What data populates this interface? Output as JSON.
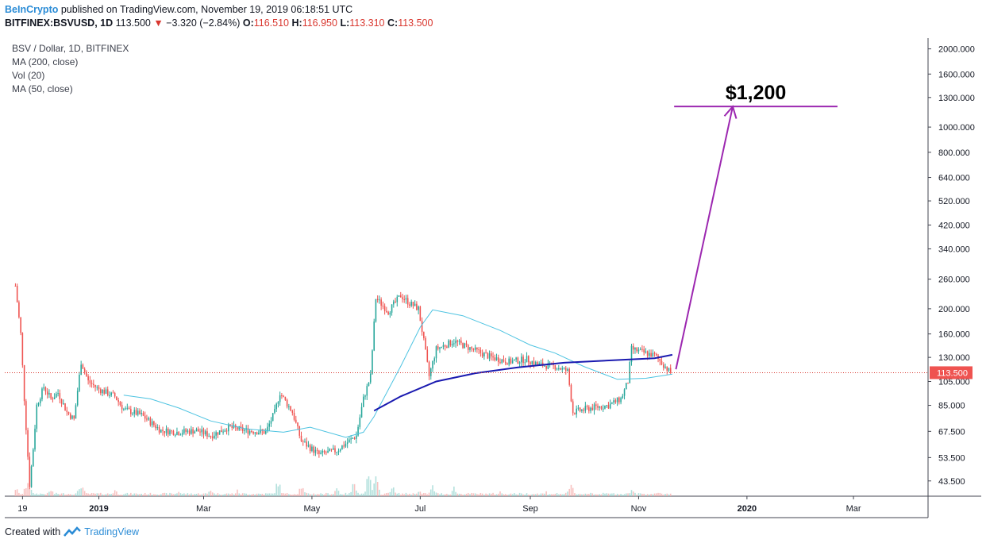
{
  "header": {
    "publisher": "BeInCrypto",
    "published_text": "published on TradingView.com, November 19, 2019 06:18:51 UTC",
    "symbol": "BITFINEX:BSVUSD, 1D",
    "last": "113.500",
    "change": "−3.320 (−2.84%)",
    "open_label": "O:",
    "open": "116.510",
    "high_label": "H:",
    "high": "116.950",
    "low_label": "L:",
    "low": "113.310",
    "close_label": "C:",
    "close": "113.500"
  },
  "legend": {
    "title": "BSV / Dollar, 1D, BITFINEX",
    "ma200": "MA (200, close)",
    "vol": "Vol (20)",
    "ma50": "MA (50, close)"
  },
  "chart_data": {
    "type": "candlestick",
    "y_scale": "log",
    "ylim": [
      38,
      2200
    ],
    "y_ticks": [
      "2000.000",
      "1600.000",
      "1300.000",
      "1000.000",
      "800.000",
      "640.000",
      "520.000",
      "420.000",
      "340.000",
      "260.000",
      "200.000",
      "160.000",
      "130.000",
      "105.000",
      "85.000",
      "67.500",
      "53.500",
      "43.500"
    ],
    "y_tick_values": [
      2000,
      1600,
      1300,
      1000,
      800,
      640,
      520,
      420,
      340,
      260,
      200,
      160,
      130,
      105,
      85,
      67.5,
      53.5,
      43.5
    ],
    "x_labels": [
      "19",
      "2019",
      "Mar",
      "May",
      "Jul",
      "Sep",
      "Nov",
      "2020",
      "Mar"
    ],
    "x_label_dates": [
      "2018-11-19",
      "2019-01-01",
      "2019-03-01",
      "2019-05-01",
      "2019-07-01",
      "2019-09-01",
      "2019-11-01",
      "2020-01-01",
      "2020-03-01"
    ],
    "date_range": [
      "2018-11-09",
      "2020-04-12"
    ],
    "price_series": [
      [
        "2018-11-15",
        245
      ],
      [
        "2018-11-18",
        160
      ],
      [
        "2018-11-20",
        90
      ],
      [
        "2018-11-23",
        42
      ],
      [
        "2018-11-25",
        58
      ],
      [
        "2018-11-27",
        85
      ],
      [
        "2018-12-01",
        100
      ],
      [
        "2018-12-05",
        90
      ],
      [
        "2018-12-09",
        95
      ],
      [
        "2018-12-14",
        80
      ],
      [
        "2018-12-18",
        75
      ],
      [
        "2018-12-22",
        125
      ],
      [
        "2018-12-26",
        105
      ],
      [
        "2019-01-01",
        98
      ],
      [
        "2019-01-10",
        92
      ],
      [
        "2019-01-15",
        82
      ],
      [
        "2019-01-25",
        78
      ],
      [
        "2019-02-05",
        68
      ],
      [
        "2019-02-15",
        67
      ],
      [
        "2019-02-25",
        68
      ],
      [
        "2019-03-05",
        65
      ],
      [
        "2019-03-15",
        70
      ],
      [
        "2019-03-25",
        68
      ],
      [
        "2019-04-05",
        67
      ],
      [
        "2019-04-10",
        80
      ],
      [
        "2019-04-13",
        95
      ],
      [
        "2019-04-20",
        80
      ],
      [
        "2019-04-25",
        62
      ],
      [
        "2019-05-05",
        55
      ],
      [
        "2019-05-15",
        57
      ],
      [
        "2019-05-22",
        62
      ],
      [
        "2019-05-26",
        65
      ],
      [
        "2019-05-30",
        90
      ],
      [
        "2019-06-03",
        110
      ],
      [
        "2019-06-06",
        220
      ],
      [
        "2019-06-13",
        195
      ],
      [
        "2019-06-20",
        225
      ],
      [
        "2019-06-25",
        210
      ],
      [
        "2019-06-30",
        200
      ],
      [
        "2019-07-03",
        150
      ],
      [
        "2019-07-06",
        110
      ],
      [
        "2019-07-10",
        140
      ],
      [
        "2019-07-20",
        150
      ],
      [
        "2019-07-30",
        140
      ],
      [
        "2019-08-10",
        130
      ],
      [
        "2019-08-20",
        125
      ],
      [
        "2019-08-30",
        128
      ],
      [
        "2019-09-05",
        122
      ],
      [
        "2019-09-15",
        120
      ],
      [
        "2019-09-22",
        115
      ],
      [
        "2019-09-25",
        80
      ],
      [
        "2019-10-05",
        83
      ],
      [
        "2019-10-15",
        85
      ],
      [
        "2019-10-22",
        90
      ],
      [
        "2019-10-26",
        105
      ],
      [
        "2019-10-28",
        140
      ],
      [
        "2019-11-05",
        135
      ],
      [
        "2019-11-10",
        132
      ],
      [
        "2019-11-15",
        122
      ],
      [
        "2019-11-19",
        113.5
      ]
    ],
    "volume_series": [
      [
        "2018-11-15",
        0.4
      ],
      [
        "2018-11-22",
        0.8
      ],
      [
        "2018-12-05",
        0.3
      ],
      [
        "2018-12-22",
        0.6
      ],
      [
        "2019-01-10",
        0.3
      ],
      [
        "2019-02-15",
        0.25
      ],
      [
        "2019-03-05",
        0.35
      ],
      [
        "2019-03-20",
        0.25
      ],
      [
        "2019-04-12",
        0.7
      ],
      [
        "2019-04-25",
        0.5
      ],
      [
        "2019-05-15",
        0.4
      ],
      [
        "2019-05-25",
        0.7
      ],
      [
        "2019-06-02",
        1.0
      ],
      [
        "2019-06-06",
        0.8
      ],
      [
        "2019-06-15",
        0.5
      ],
      [
        "2019-06-30",
        0.3
      ],
      [
        "2019-07-08",
        0.45
      ],
      [
        "2019-07-20",
        0.4
      ],
      [
        "2019-08-15",
        0.2
      ],
      [
        "2019-09-10",
        0.2
      ],
      [
        "2019-09-24",
        0.5
      ],
      [
        "2019-10-05",
        0.2
      ],
      [
        "2019-10-28",
        0.35
      ],
      [
        "2019-11-10",
        0.15
      ]
    ],
    "ma50": [
      [
        "2019-01-15",
        93
      ],
      [
        "2019-01-30",
        90
      ],
      [
        "2019-02-15",
        83
      ],
      [
        "2019-03-05",
        74
      ],
      [
        "2019-03-25",
        69
      ],
      [
        "2019-04-15",
        67
      ],
      [
        "2019-04-30",
        70
      ],
      [
        "2019-05-20",
        64
      ],
      [
        "2019-05-30",
        67
      ],
      [
        "2019-06-05",
        77
      ],
      [
        "2019-06-20",
        120
      ],
      [
        "2019-07-01",
        170
      ],
      [
        "2019-07-08",
        198
      ],
      [
        "2019-07-25",
        188
      ],
      [
        "2019-08-15",
        165
      ],
      [
        "2019-09-01",
        145
      ],
      [
        "2019-09-15",
        135
      ],
      [
        "2019-10-01",
        120
      ],
      [
        "2019-10-20",
        107
      ],
      [
        "2019-11-05",
        108
      ],
      [
        "2019-11-20",
        112
      ]
    ],
    "ma200": [
      [
        "2019-06-05",
        81
      ],
      [
        "2019-06-20",
        92
      ],
      [
        "2019-07-10",
        105
      ],
      [
        "2019-08-01",
        113
      ],
      [
        "2019-08-25",
        119
      ],
      [
        "2019-09-20",
        124
      ],
      [
        "2019-10-20",
        127
      ],
      [
        "2019-11-10",
        129
      ],
      [
        "2019-11-20",
        133
      ]
    ],
    "current_price": 113.5,
    "current_price_label": "113.500",
    "target_price": 1200,
    "target_label": "$1,200",
    "target_arrow": {
      "from": [
        "2019-11-22",
        117
      ],
      "to": [
        "2019-12-24",
        1200
      ]
    },
    "target_line_dates": [
      "2019-11-21",
      "2020-02-21"
    ],
    "colors": {
      "up": "#26a69a",
      "down": "#ef5350",
      "ma50": "#4dc3e1",
      "ma200": "#1a1ab0",
      "arrow": "#9c27b0",
      "price_line": "#d9372f"
    }
  },
  "footer": {
    "created_with": "Created with",
    "brand": "TradingView"
  }
}
